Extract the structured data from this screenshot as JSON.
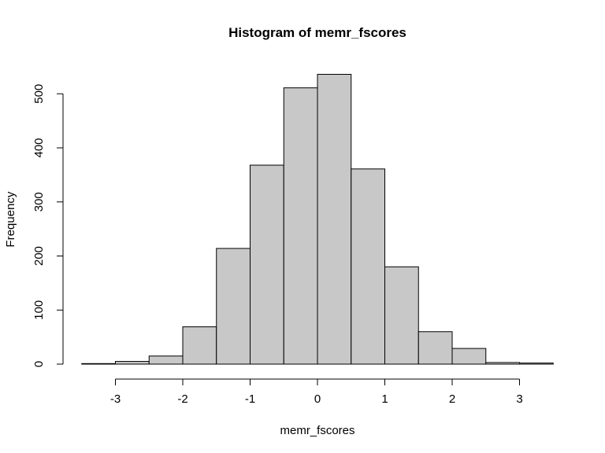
{
  "chart_data": {
    "type": "bar",
    "title": "Histogram of memr_fscores",
    "xlabel": "memr_fscores",
    "ylabel": "Frequency",
    "bin_edges": [
      -3.5,
      -3.0,
      -2.5,
      -2.0,
      -1.5,
      -1.0,
      -0.5,
      0.0,
      0.5,
      1.0,
      1.5,
      2.0,
      2.5,
      3.0,
      3.5
    ],
    "values": [
      1,
      5,
      15,
      69,
      214,
      368,
      511,
      536,
      361,
      180,
      60,
      29,
      3,
      2
    ],
    "xlim": [
      -3.5,
      3.5
    ],
    "ylim": [
      0,
      540
    ],
    "x_ticks": [
      -3,
      -2,
      -1,
      0,
      1,
      2,
      3
    ],
    "x_tick_labels": [
      "-3",
      "-2",
      "-1",
      "0",
      "1",
      "2",
      "3"
    ],
    "y_ticks": [
      0,
      100,
      200,
      300,
      400,
      500
    ],
    "y_tick_labels": [
      "0",
      "100",
      "200",
      "300",
      "400",
      "500"
    ],
    "bar_color": "#c8c8c8",
    "grid": false,
    "legend": "none"
  }
}
